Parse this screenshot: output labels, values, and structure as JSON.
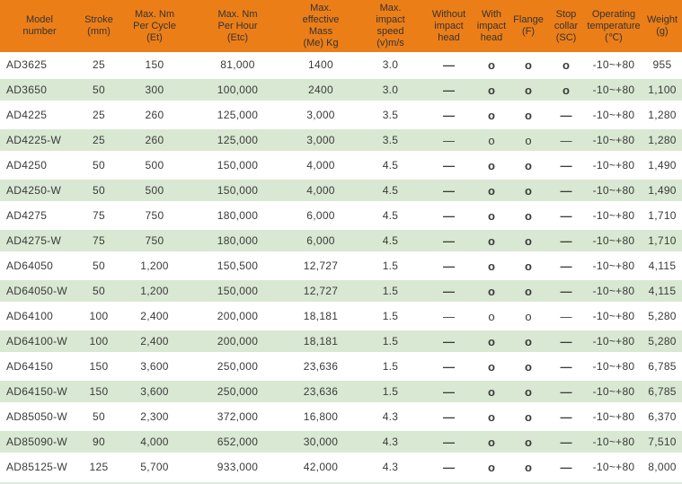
{
  "table": {
    "columns": [
      {
        "key": "model",
        "label": "Model\nnumber"
      },
      {
        "key": "stroke",
        "label": "Stroke\n(mm)"
      },
      {
        "key": "max_nm_per_cycle",
        "label": "Max. Nm\nPer Cycle\n(Et)"
      },
      {
        "key": "max_nm_per_hour",
        "label": "Max. Nm\nPer Hour\n(Etc)"
      },
      {
        "key": "max_effective_mass",
        "label": "Max.\neffective\nMass\n(Me) Kg"
      },
      {
        "key": "max_impact_speed",
        "label": "Max.\nimpact\nspeed\n(v)m/s"
      },
      {
        "key": "without_impact_head",
        "label": "Without\nimpact\nhead"
      },
      {
        "key": "with_impact_head",
        "label": "With\nimpact\nhead"
      },
      {
        "key": "flange",
        "label": "Flange\n(F)"
      },
      {
        "key": "stop_collar",
        "label": "Stop\ncollar\n(SC)"
      },
      {
        "key": "operating_temperature",
        "label": "Operating\ntemperature\n(℃)"
      },
      {
        "key": "weight",
        "label": "Weight\n(g)"
      }
    ],
    "rows": [
      [
        "AD3625",
        "25",
        "150",
        "81,000",
        "1400",
        "3.0",
        "—",
        "o",
        "o",
        "o",
        "-10~+80",
        "955"
      ],
      [
        "AD3650",
        "50",
        "300",
        "100,000",
        "2400",
        "3.0",
        "—",
        "o",
        "o",
        "o",
        "-10~+80",
        "1,100"
      ],
      [
        "AD4225",
        "25",
        "260",
        "125,000",
        "3,000",
        "3.5",
        "—",
        "o",
        "o",
        "—",
        "-10~+80",
        "1,280"
      ],
      [
        "AD4225-W",
        "25",
        "260",
        "125,000",
        "3,000",
        "3.5",
        "—",
        "o",
        "o",
        "—",
        "-10~+80",
        "1,280"
      ],
      [
        "AD4250",
        "50",
        "500",
        "150,000",
        "4,000",
        "4.5",
        "—",
        "o",
        "o",
        "—",
        "-10~+80",
        "1,490"
      ],
      [
        "AD4250-W",
        "50",
        "500",
        "150,000",
        "4,000",
        "4.5",
        "—",
        "o",
        "o",
        "—",
        "-10~+80",
        "1,490"
      ],
      [
        "AD4275",
        "75",
        "750",
        "180,000",
        "6,000",
        "4.5",
        "—",
        "o",
        "o",
        "—",
        "-10~+80",
        "1,710"
      ],
      [
        "AD4275-W",
        "75",
        "750",
        "180,000",
        "6,000",
        "4.5",
        "—",
        "o",
        "o",
        "—",
        "-10~+80",
        "1,710"
      ],
      [
        "AD64050",
        "50",
        "1,200",
        "150,500",
        "12,727",
        "1.5",
        "—",
        "o",
        "o",
        "—",
        "-10~+80",
        "4,115"
      ],
      [
        "AD64050-W",
        "50",
        "1,200",
        "150,000",
        "12,727",
        "1.5",
        "—",
        "o",
        "o",
        "—",
        "-10~+80",
        "4,115"
      ],
      [
        "AD64100",
        "100",
        "2,400",
        "200,000",
        "18,181",
        "1.5",
        "—",
        "o",
        "o",
        "—",
        "-10~+80",
        "5,280"
      ],
      [
        "AD64100-W",
        "100",
        "2,400",
        "200,000",
        "18,181",
        "1.5",
        "—",
        "o",
        "o",
        "—",
        "-10~+80",
        "5,280"
      ],
      [
        "AD64150",
        "150",
        "3,600",
        "250,000",
        "23,636",
        "1.5",
        "—",
        "o",
        "o",
        "—",
        "-10~+80",
        "6,785"
      ],
      [
        "AD64150-W",
        "150",
        "3,600",
        "250,000",
        "23,636",
        "1.5",
        "—",
        "o",
        "o",
        "—",
        "-10~+80",
        "6,785"
      ],
      [
        "AD85050-W",
        "50",
        "2,300",
        "372,000",
        "16,800",
        "4.3",
        "—",
        "o",
        "o",
        "—",
        "-10~+80",
        "6,370"
      ],
      [
        "AD85090-W",
        "90",
        "4,000",
        "652,000",
        "30,000",
        "4.3",
        "—",
        "o",
        "o",
        "—",
        "-10~+80",
        "7,510"
      ],
      [
        "AD85125-W",
        "125",
        "5,700",
        "933,000",
        "42,000",
        "4.3",
        "—",
        "o",
        "o",
        "—",
        "-10~+80",
        "8,000"
      ]
    ],
    "thin_mark_rows": [
      3,
      10
    ],
    "mark_columns": [
      6,
      7,
      8,
      9
    ],
    "colors": {
      "header_bg": "#ec7e18",
      "header_text": "#333333",
      "row_alt_bg": "#d9e8d2",
      "row_text": "#3a3a3a"
    }
  }
}
